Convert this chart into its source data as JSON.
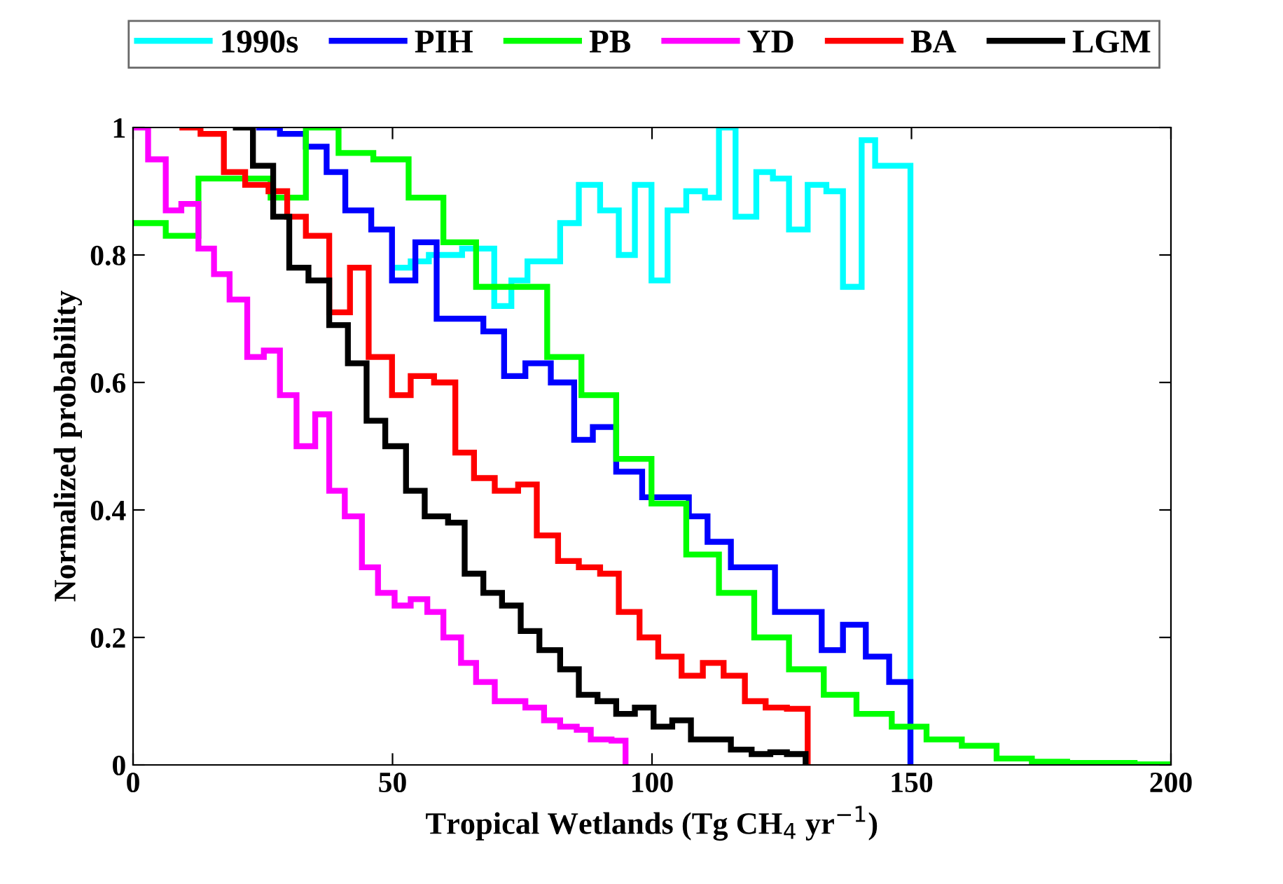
{
  "chart_data": {
    "type": "step",
    "xlabel": "Tropical Wetlands (Tg CH$_{4}$ yr$^{−1}$)",
    "ylabel": "Normalized probability",
    "xlim": [
      0,
      200
    ],
    "xticks": [
      0,
      50,
      100,
      150,
      200
    ],
    "ylim": [
      0,
      1
    ],
    "yticks": [
      0,
      {
        "value": 0.2,
        "label": "0.2"
      },
      {
        "value": 0.4,
        "label": "0.4"
      },
      {
        "value": 0.6,
        "label": "0.6"
      },
      {
        "value": 0.8,
        "label": "0.8"
      },
      1
    ],
    "legend": "top",
    "grid": false,
    "line_style": "solid",
    "marker": "none",
    "series": [
      {
        "name": "1990s",
        "color": "#00ffff",
        "x": [
          50.7,
          53.5,
          57,
          63.4,
          69.6,
          72.9,
          76,
          82.3,
          85.9,
          90,
          93.6,
          96.7,
          99.9,
          103,
          106.6,
          110.2,
          112.9,
          116.1,
          120.1,
          123.3,
          126.4,
          130,
          133.6,
          136.8,
          140.4,
          143,
          149.8
        ],
        "values": [
          0.78,
          0.79,
          0.8,
          0.81,
          0.72,
          0.76,
          0.79,
          0.85,
          0.91,
          0.87,
          0.8,
          0.91,
          0.76,
          0.87,
          0.9,
          0.89,
          1.0,
          0.86,
          0.93,
          0.92,
          0.84,
          0.91,
          0.9,
          0.75,
          0.98,
          0.94,
          0
        ]
      },
      {
        "name": "PIH",
        "color": "#0000ff",
        "x": [
          24.3,
          28.3,
          33.3,
          37.3,
          40.9,
          45.9,
          49.9,
          54.4,
          58.5,
          63.4,
          67.5,
          71.5,
          75.6,
          80.5,
          85,
          88.6,
          93.1,
          98.1,
          107.1,
          110.7,
          115.2,
          123.7,
          132.7,
          136.8,
          141.2,
          145.7,
          149.8
        ],
        "values": [
          1.0,
          0.99,
          0.97,
          0.93,
          0.87,
          0.84,
          0.76,
          0.82,
          0.7,
          0.7,
          0.68,
          0.61,
          0.63,
          0.6,
          0.51,
          0.53,
          0.46,
          0.42,
          0.39,
          0.35,
          0.31,
          0.24,
          0.18,
          0.22,
          0.17,
          0.13,
          0
        ]
      },
      {
        "name": "PB",
        "color": "#00ff00",
        "x": [
          0,
          6.3,
          12.6,
          26.5,
          33.3,
          39.6,
          46.3,
          53.1,
          59.8,
          66.1,
          79.8,
          86.4,
          93.1,
          99.9,
          106.6,
          112.9,
          119.7,
          126.4,
          133.1,
          139.4,
          146.2,
          152.9,
          159.7,
          166.4,
          173.2,
          180,
          193,
          200
        ],
        "values": [
          0.85,
          0.83,
          0.92,
          0.89,
          1.0,
          0.96,
          0.95,
          0.89,
          0.82,
          0.75,
          0.64,
          0.58,
          0.48,
          0.41,
          0.33,
          0.27,
          0.2,
          0.15,
          0.11,
          0.08,
          0.06,
          0.04,
          0.03,
          0.01,
          0.005,
          0.003,
          0.001,
          0.001
        ]
      },
      {
        "name": "YD",
        "color": "#ff00ff",
        "x": [
          0,
          2.9,
          6.3,
          9.3,
          12.6,
          15.6,
          18.6,
          22.0,
          25.2,
          28.3,
          31.5,
          35.1,
          37.8,
          40.8,
          44.1,
          47.2,
          50.4,
          53.5,
          56.7,
          59.8,
          63.2,
          66.1,
          69.7,
          75.6,
          79.2,
          82.3,
          85.5,
          88.2,
          92.2,
          94.9
        ],
        "values": [
          1.0,
          0.95,
          0.87,
          0.88,
          0.81,
          0.77,
          0.73,
          0.64,
          0.65,
          0.58,
          0.5,
          0.55,
          0.43,
          0.39,
          0.31,
          0.27,
          0.25,
          0.26,
          0.24,
          0.2,
          0.16,
          0.13,
          0.1,
          0.09,
          0.07,
          0.06,
          0.055,
          0.04,
          0.038,
          0
        ]
      },
      {
        "name": "BA",
        "color": "#ff0000",
        "x": [
          9.5,
          13,
          17.5,
          21.6,
          26.1,
          29.7,
          33.3,
          37.8,
          41.8,
          45.4,
          49.9,
          53.5,
          58,
          62.1,
          65.7,
          69.7,
          74.2,
          77.8,
          81.9,
          85.9,
          90,
          93.6,
          97.6,
          101.2,
          105.7,
          109.8,
          113.8,
          117.9,
          121.9,
          126,
          130
        ],
        "values": [
          1.0,
          0.99,
          0.93,
          0.91,
          0.9,
          0.86,
          0.83,
          0.71,
          0.78,
          0.64,
          0.58,
          0.61,
          0.6,
          0.49,
          0.45,
          0.43,
          0.44,
          0.36,
          0.32,
          0.31,
          0.3,
          0.24,
          0.2,
          0.17,
          0.14,
          0.16,
          0.14,
          0.1,
          0.09,
          0.088,
          0
        ]
      },
      {
        "name": "LGM",
        "color": "#000000",
        "x": [
          19.8,
          23.1,
          27,
          30.1,
          33.8,
          37.8,
          41.4,
          45,
          48.6,
          52.6,
          56.2,
          60.7,
          63.9,
          67.5,
          71.1,
          74.7,
          78.3,
          82.3,
          85.9,
          89.5,
          93.1,
          96.7,
          100.3,
          103.9,
          107.5,
          111.1,
          115.2,
          119.2,
          122.8,
          126,
          129.6
        ],
        "values": [
          1.0,
          0.94,
          0.86,
          0.78,
          0.76,
          0.69,
          0.63,
          0.54,
          0.5,
          0.43,
          0.39,
          0.38,
          0.3,
          0.27,
          0.25,
          0.21,
          0.18,
          0.15,
          0.11,
          0.1,
          0.08,
          0.09,
          0.06,
          0.07,
          0.04,
          0.04,
          0.024,
          0.017,
          0.02,
          0.017,
          0
        ]
      }
    ]
  }
}
